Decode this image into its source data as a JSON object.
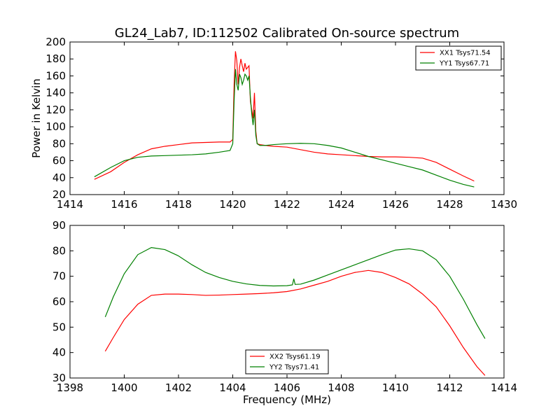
{
  "figure": {
    "title": "GL24_Lab7, ID:112502 Calibrated On-source spectrum"
  },
  "chart_data": [
    {
      "type": "line",
      "title": "GL24_Lab7, ID:112502 Calibrated On-source spectrum",
      "xlabel": "",
      "ylabel": "Power in Kelvin",
      "xlim": [
        1414,
        1430
      ],
      "ylim": [
        20,
        200
      ],
      "xticks": [
        1414,
        1416,
        1418,
        1420,
        1422,
        1424,
        1426,
        1428,
        1430
      ],
      "yticks": [
        20,
        40,
        60,
        80,
        100,
        120,
        140,
        160,
        180,
        200
      ],
      "grid": false,
      "legend": "top-right",
      "series": [
        {
          "name": "XX1 Tsys71.54",
          "color": "#ff0000",
          "x": [
            1414.9,
            1415.5,
            1416,
            1416.5,
            1417,
            1417.5,
            1418,
            1418.5,
            1419,
            1419.5,
            1419.9,
            1420.0,
            1420.05,
            1420.1,
            1420.15,
            1420.2,
            1420.25,
            1420.3,
            1420.35,
            1420.4,
            1420.45,
            1420.5,
            1420.55,
            1420.6,
            1420.65,
            1420.7,
            1420.75,
            1420.8,
            1420.85,
            1420.9,
            1421.0,
            1421.2,
            1421.5,
            1422,
            1422.5,
            1423,
            1423.5,
            1424,
            1424.5,
            1425,
            1425.5,
            1426,
            1426.5,
            1427,
            1427.5,
            1428,
            1428.5,
            1428.9
          ],
          "y": [
            38,
            47,
            58,
            67,
            74,
            77,
            79,
            81,
            81.5,
            82,
            82,
            85,
            150,
            189,
            178,
            150,
            170,
            180,
            172,
            165,
            175,
            168,
            170,
            172,
            130,
            120,
            110,
            140,
            95,
            80,
            79,
            78,
            77,
            76,
            73,
            70,
            68,
            67,
            66,
            65,
            64.5,
            64.5,
            64,
            63,
            58,
            50,
            42,
            36
          ]
        },
        {
          "name": "YY1 Tsys67.71",
          "color": "#008000",
          "x": [
            1414.9,
            1415.5,
            1416,
            1416.5,
            1417,
            1417.5,
            1418,
            1418.5,
            1419,
            1419.5,
            1419.9,
            1420.0,
            1420.05,
            1420.1,
            1420.15,
            1420.2,
            1420.25,
            1420.3,
            1420.35,
            1420.4,
            1420.45,
            1420.5,
            1420.55,
            1420.6,
            1420.65,
            1420.7,
            1420.75,
            1420.8,
            1420.85,
            1420.9,
            1421.0,
            1421.2,
            1421.5,
            1422,
            1422.5,
            1423,
            1423.5,
            1424,
            1424.5,
            1425,
            1425.5,
            1426,
            1426.5,
            1427,
            1427.5,
            1428,
            1428.5,
            1428.9
          ],
          "y": [
            41,
            52,
            60,
            64,
            65.5,
            66,
            66.5,
            67,
            68,
            70,
            72,
            80,
            130,
            168,
            150,
            143,
            162,
            158,
            150,
            155,
            162,
            160,
            155,
            160,
            135,
            115,
            102,
            120,
            90,
            80,
            78,
            78,
            79,
            80,
            80.5,
            80,
            78,
            75,
            70,
            65,
            61,
            57,
            53,
            49,
            43,
            37,
            32,
            29
          ]
        }
      ]
    },
    {
      "type": "line",
      "title": "",
      "xlabel": "Frequency (MHz)",
      "ylabel": "",
      "xlim": [
        1398,
        1414
      ],
      "ylim": [
        30,
        90
      ],
      "xticks": [
        1398,
        1400,
        1402,
        1404,
        1406,
        1408,
        1410,
        1412,
        1414
      ],
      "yticks": [
        30,
        40,
        50,
        60,
        70,
        80,
        90
      ],
      "grid": false,
      "legend": "bottom-center",
      "series": [
        {
          "name": "XX2 Tsys61.19",
          "color": "#ff0000",
          "x": [
            1399.3,
            1399.6,
            1400,
            1400.5,
            1401,
            1401.5,
            1402,
            1402.5,
            1403,
            1403.5,
            1404,
            1404.5,
            1405,
            1405.5,
            1406,
            1406.5,
            1407,
            1407.5,
            1408,
            1408.5,
            1409,
            1409.5,
            1410,
            1410.5,
            1411,
            1411.5,
            1412,
            1412.5,
            1413,
            1413.3
          ],
          "y": [
            40.5,
            46,
            53,
            59,
            62.5,
            63,
            63,
            62.8,
            62.5,
            62.6,
            62.8,
            63,
            63.2,
            63.5,
            64,
            65,
            66.5,
            68,
            70,
            71.5,
            72.3,
            71.5,
            69.5,
            67,
            63,
            58,
            50.5,
            42,
            34.5,
            31
          ]
        },
        {
          "name": "YY2 Tsys71.41",
          "color": "#008000",
          "x": [
            1399.3,
            1399.6,
            1400,
            1400.5,
            1401,
            1401.5,
            1402,
            1402.5,
            1403,
            1403.5,
            1404,
            1404.5,
            1405,
            1405.5,
            1406,
            1406.2,
            1406.25,
            1406.3,
            1406.5,
            1407,
            1407.5,
            1408,
            1408.5,
            1409,
            1409.5,
            1410,
            1410.5,
            1411,
            1411.5,
            1412,
            1412.5,
            1413,
            1413.3
          ],
          "y": [
            54,
            62,
            71,
            78.5,
            81.3,
            80.5,
            78,
            74.5,
            71.5,
            69.5,
            68,
            67,
            66.4,
            66.2,
            66.3,
            66.6,
            69,
            66.8,
            66.9,
            68.5,
            70.5,
            72.5,
            74.5,
            76.5,
            78.5,
            80.3,
            80.8,
            80,
            76.5,
            70,
            61,
            51,
            45.5
          ]
        }
      ]
    }
  ]
}
